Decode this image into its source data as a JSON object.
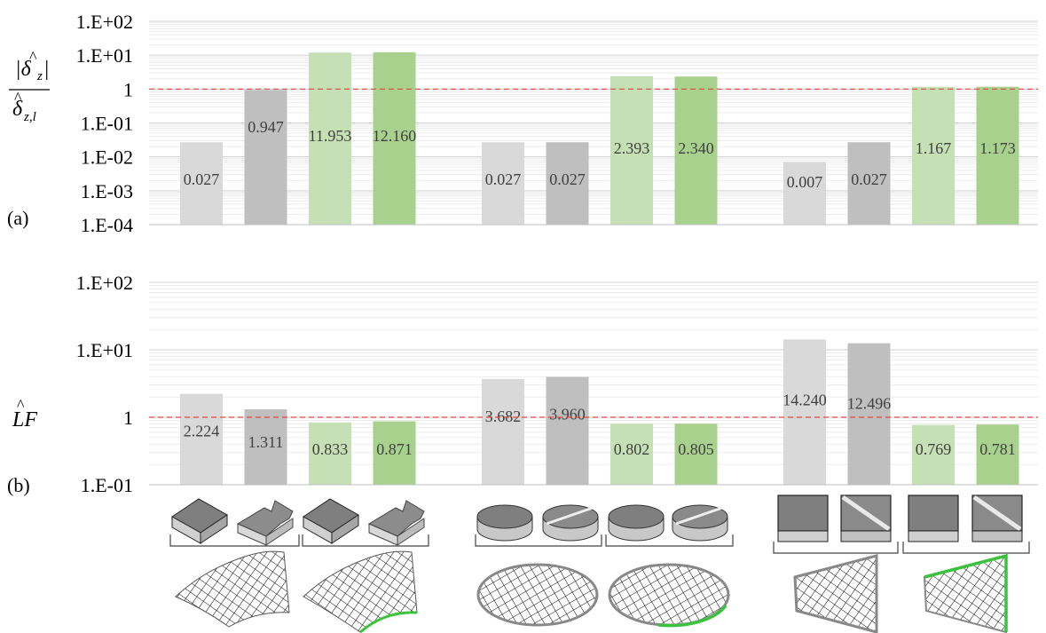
{
  "colors": {
    "light_grey": "#d9d9d9",
    "dark_grey": "#bfbfbf",
    "light_green": "#c5e0b4",
    "green": "#a9d18e",
    "reference_line": "#e8453c",
    "edge_green": "#3cc23c"
  },
  "chart_data": [
    {
      "type": "bar",
      "panel_label": "(a)",
      "ylabel": "|δ̂z| / δ̂z,l",
      "yscale": "log",
      "ylim": [
        0.0001,
        100
      ],
      "yticks": [
        "1.E-04",
        "1.E-03",
        "1.E-02",
        "1.E-01",
        "1",
        "1.E+01",
        "1.E+02"
      ],
      "reference_line": 1,
      "groups": [
        {
          "values": [
            0.027,
            0.947,
            11.953,
            12.16
          ],
          "labels": [
            "0.027",
            "0.947",
            "11.953",
            "12.160"
          ]
        },
        {
          "values": [
            0.027,
            0.027,
            2.393,
            2.34
          ],
          "labels": [
            "0.027",
            "0.027",
            "2.393",
            "2.340"
          ]
        },
        {
          "values": [
            0.007,
            0.027,
            1.167,
            1.173
          ],
          "labels": [
            "0.007",
            "0.027",
            "1.167",
            "1.173"
          ]
        }
      ]
    },
    {
      "type": "bar",
      "panel_label": "(b)",
      "ylabel": "L̂F",
      "yscale": "log",
      "ylim": [
        0.1,
        100
      ],
      "yticks": [
        "1.E-01",
        "1",
        "1.E+01",
        "1.E+02"
      ],
      "reference_line": 1,
      "groups": [
        {
          "values": [
            2.224,
            1.311,
            0.833,
            0.871
          ],
          "labels": [
            "2.224",
            "1.311",
            "0.833",
            "0.871"
          ]
        },
        {
          "values": [
            3.682,
            3.96,
            0.802,
            0.805
          ],
          "labels": [
            "3.682",
            "3.960",
            "0.802",
            "0.805"
          ]
        },
        {
          "values": [
            14.24,
            12.496,
            0.769,
            0.781
          ],
          "labels": [
            "14.240",
            "12.496",
            "0.769",
            "0.781"
          ]
        }
      ]
    }
  ],
  "icons": {
    "group_1_geometry": [
      "square-block-icon",
      "stepped-block-icon",
      "square-block-icon",
      "stepped-block-icon"
    ],
    "group_2_geometry": [
      "cylinder-icon",
      "cut-cylinder-icon",
      "cylinder-icon",
      "cut-cylinder-icon"
    ],
    "group_3_geometry": [
      "square-plate-icon",
      "diagonal-plate-icon",
      "square-plate-icon",
      "diagonal-plate-icon"
    ],
    "meshes": [
      "curved-shell-mesh-icon",
      "curved-shell-mesh-green-edge-icon",
      "circular-plate-mesh-icon",
      "circular-plate-mesh-green-edge-icon",
      "trapezoid-mesh-icon",
      "trapezoid-mesh-green-edge-icon"
    ]
  }
}
